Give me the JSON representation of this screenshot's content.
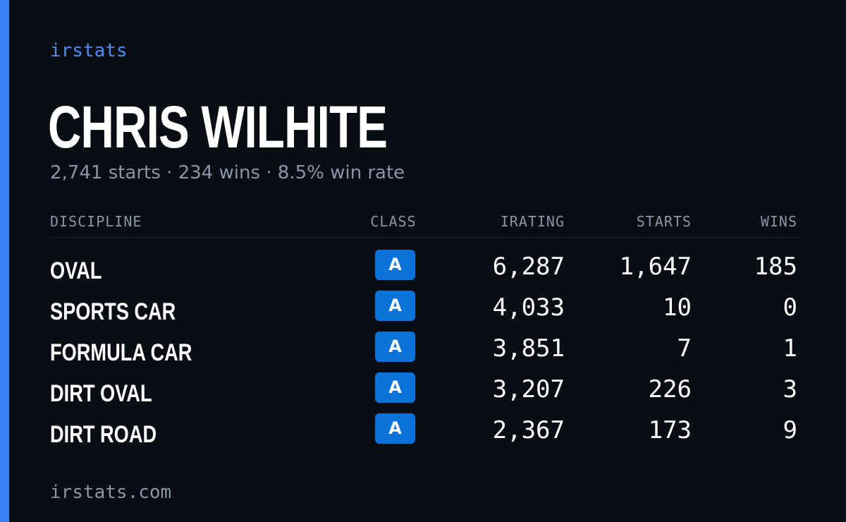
{
  "brand": "irstats",
  "driver": {
    "name": "CHRIS WILHITE",
    "summary": "2,741 starts · 234 wins · 8.5% win rate"
  },
  "table": {
    "headers": {
      "discipline": "DISCIPLINE",
      "class": "CLASS",
      "irating": "IRATING",
      "starts": "STARTS",
      "wins": "WINS"
    },
    "rows": [
      {
        "discipline": "OVAL",
        "class": "A",
        "irating": "6,287",
        "starts": "1,647",
        "wins": "185"
      },
      {
        "discipline": "SPORTS CAR",
        "class": "A",
        "irating": "4,033",
        "starts": "10",
        "wins": "0"
      },
      {
        "discipline": "FORMULA CAR",
        "class": "A",
        "irating": "3,851",
        "starts": "7",
        "wins": "1"
      },
      {
        "discipline": "DIRT OVAL",
        "class": "A",
        "irating": "3,207",
        "starts": "226",
        "wins": "3"
      },
      {
        "discipline": "DIRT ROAD",
        "class": "A",
        "irating": "2,367",
        "starts": "173",
        "wins": "9"
      }
    ]
  },
  "footer": "irstats.com",
  "colors": {
    "accent": "#3b82f6",
    "class_a_badge": "#0b72d9",
    "background": "#0a0d14"
  }
}
